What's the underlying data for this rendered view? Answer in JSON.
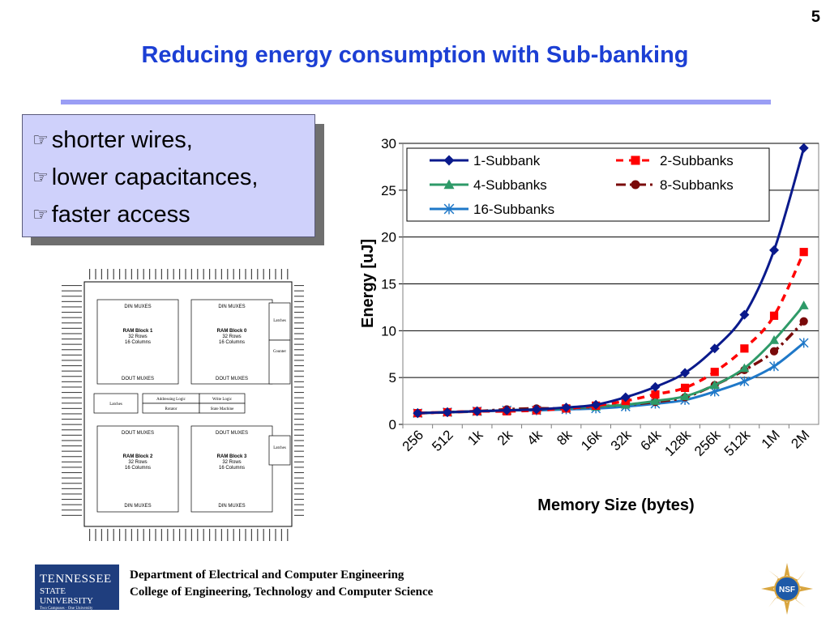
{
  "slide": {
    "number": "5",
    "title": "Reducing energy consumption with Sub-banking"
  },
  "bullets": {
    "icon": "pointing-hand-icon",
    "items": [
      "shorter wires,",
      "lower capacitances,",
      "faster access"
    ]
  },
  "sram_layout": {
    "din_mux": "DIN MUXES",
    "dout_mux": "DOUT MUXES",
    "blocks": [
      {
        "name": "RAM Block 1",
        "rows": "32 Rows",
        "cols": "16 Columns"
      },
      {
        "name": "RAM Block 0",
        "rows": "32 Rows",
        "cols": "16 Columns"
      },
      {
        "name": "RAM Block 2",
        "rows": "32 Rows",
        "cols": "16 Columns"
      },
      {
        "name": "RAM Block 3",
        "rows": "32 Rows",
        "cols": "16 Columns"
      }
    ],
    "latches": "Latches",
    "counter": "Counter",
    "addressing_logic": "Addressing Logic",
    "write_logic": "Write Logic",
    "rotator": "Rotator",
    "state_machine": "State Machine"
  },
  "chart_data": {
    "type": "line",
    "xlabel": "Memory Size (bytes)",
    "ylabel": "Energy [uJ]",
    "categories": [
      "256",
      "512",
      "1k",
      "2k",
      "4k",
      "8k",
      "16k",
      "32k",
      "64k",
      "128k",
      "256k",
      "512k",
      "1M",
      "2M"
    ],
    "ylim": [
      0,
      30
    ],
    "yticks": [
      0,
      5,
      10,
      15,
      20,
      25,
      30
    ],
    "grid": true,
    "legend_position": "top",
    "series": [
      {
        "name": "1-Subbank",
        "color": "#0a1a8c",
        "style": "solid",
        "marker": "diamond",
        "values": [
          1.2,
          1.3,
          1.4,
          1.5,
          1.6,
          1.8,
          2.1,
          2.9,
          4.0,
          5.5,
          8.1,
          11.7,
          18.6,
          29.5
        ]
      },
      {
        "name": "2-Subbanks",
        "color": "#ff0000",
        "style": "dash",
        "marker": "square",
        "values": [
          1.2,
          1.3,
          1.4,
          1.4,
          1.5,
          1.7,
          2.0,
          2.5,
          3.2,
          3.9,
          5.6,
          8.1,
          11.6,
          18.4
        ]
      },
      {
        "name": "4-Subbanks",
        "color": "#2e9a68",
        "style": "solid",
        "marker": "triangle",
        "values": [
          1.2,
          1.3,
          1.4,
          1.5,
          1.6,
          1.7,
          1.9,
          2.1,
          2.5,
          3.0,
          4.2,
          6.0,
          9.0,
          12.7
        ]
      },
      {
        "name": "8-Subbanks",
        "color": "#7a0a0a",
        "style": "dashdot",
        "marker": "circle",
        "values": [
          1.2,
          1.3,
          1.4,
          1.6,
          1.7,
          1.7,
          1.9,
          2.1,
          2.4,
          2.9,
          4.2,
          5.8,
          7.8,
          11.0
        ]
      },
      {
        "name": "16-Subbanks",
        "color": "#1f78c8",
        "style": "solid",
        "marker": "star",
        "values": [
          1.2,
          1.3,
          1.4,
          1.5,
          1.5,
          1.6,
          1.7,
          1.9,
          2.2,
          2.6,
          3.5,
          4.6,
          6.2,
          8.7
        ]
      }
    ]
  },
  "footer": {
    "department": "Department of Electrical and Computer Engineering",
    "college": "College of Engineering, Technology and Computer Science",
    "tsu_logo_line1": "TENNESSEE",
    "tsu_logo_line2": "STATE UNIVERSITY",
    "tsu_logo_line3": "Two Campuses · One University",
    "nsf_logo_text": "NSF"
  }
}
